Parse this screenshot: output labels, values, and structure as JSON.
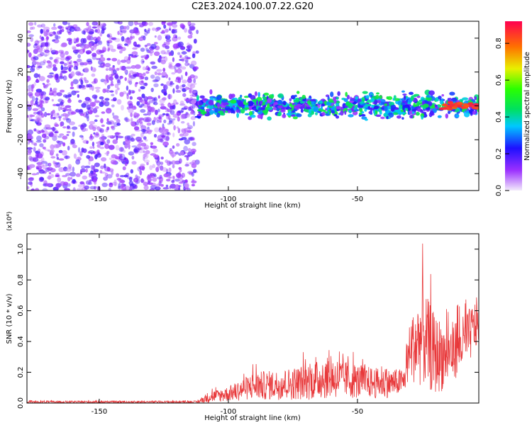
{
  "title": "C2E3.2024.100.07.22.G20",
  "colors": {
    "spectrum_high": "#ff0000",
    "snr_line": "#e8393b",
    "axis": "#000000"
  },
  "chart_data": [
    {
      "type": "heatmap",
      "xlabel": "Height of straight line (km)",
      "ylabel": "Frequency (Hz)",
      "xlim": [
        -178,
        -3
      ],
      "ylim": [
        -50,
        50
      ],
      "xticks": [
        -150,
        -100,
        -50
      ],
      "yticks": [
        -40,
        -20,
        0,
        20,
        40
      ],
      "colorbar": {
        "label": "Normalized spectral amplitude",
        "range": [
          0.0,
          0.92
        ],
        "ticks": [
          "0.0",
          "0.2",
          "0.4",
          "0.6",
          "0.8"
        ]
      },
      "regions": [
        {
          "x": [
            -178,
            -112
          ],
          "y": [
            -50,
            50
          ],
          "amplitude": [
            0.05,
            0.2
          ],
          "pattern": "broadband noise"
        },
        {
          "x": [
            -112,
            -3
          ],
          "y": [
            -6,
            6
          ],
          "amplitude": [
            0.1,
            0.5
          ],
          "pattern": "narrow band near 0 Hz"
        },
        {
          "x": [
            -18,
            -3
          ],
          "y": [
            -2,
            2
          ],
          "amplitude": [
            0.8,
            0.92
          ],
          "pattern": "peak at 0 Hz"
        }
      ]
    },
    {
      "type": "line",
      "xlabel": "Height of straight line (km)",
      "ylabel": "SNR (10 * v/v)",
      "yscale_label": "(x10⁴)",
      "xlim": [
        -178,
        -3
      ],
      "ylim": [
        0,
        1.1
      ],
      "xticks": [
        -150,
        -100,
        -50
      ],
      "yticks": [
        "0.0",
        "0.2",
        "0.4",
        "0.6",
        "0.8",
        "1.0"
      ],
      "envelope": {
        "x": [
          -178,
          -112,
          -108,
          -100,
          -90,
          -80,
          -70,
          -60,
          -50,
          -40,
          -32,
          -30,
          -25,
          -20,
          -15,
          -10,
          -5,
          -3
        ],
        "low": [
          0.0,
          0.0,
          0.0,
          0.01,
          0.02,
          0.02,
          0.02,
          0.03,
          0.03,
          0.03,
          0.05,
          0.15,
          0.1,
          0.05,
          0.1,
          0.2,
          0.3,
          0.4
        ],
        "high": [
          0.02,
          0.02,
          0.1,
          0.15,
          0.28,
          0.3,
          0.35,
          0.42,
          0.35,
          0.3,
          0.3,
          0.65,
          1.05,
          0.8,
          0.7,
          0.7,
          0.8,
          0.85
        ]
      }
    }
  ]
}
